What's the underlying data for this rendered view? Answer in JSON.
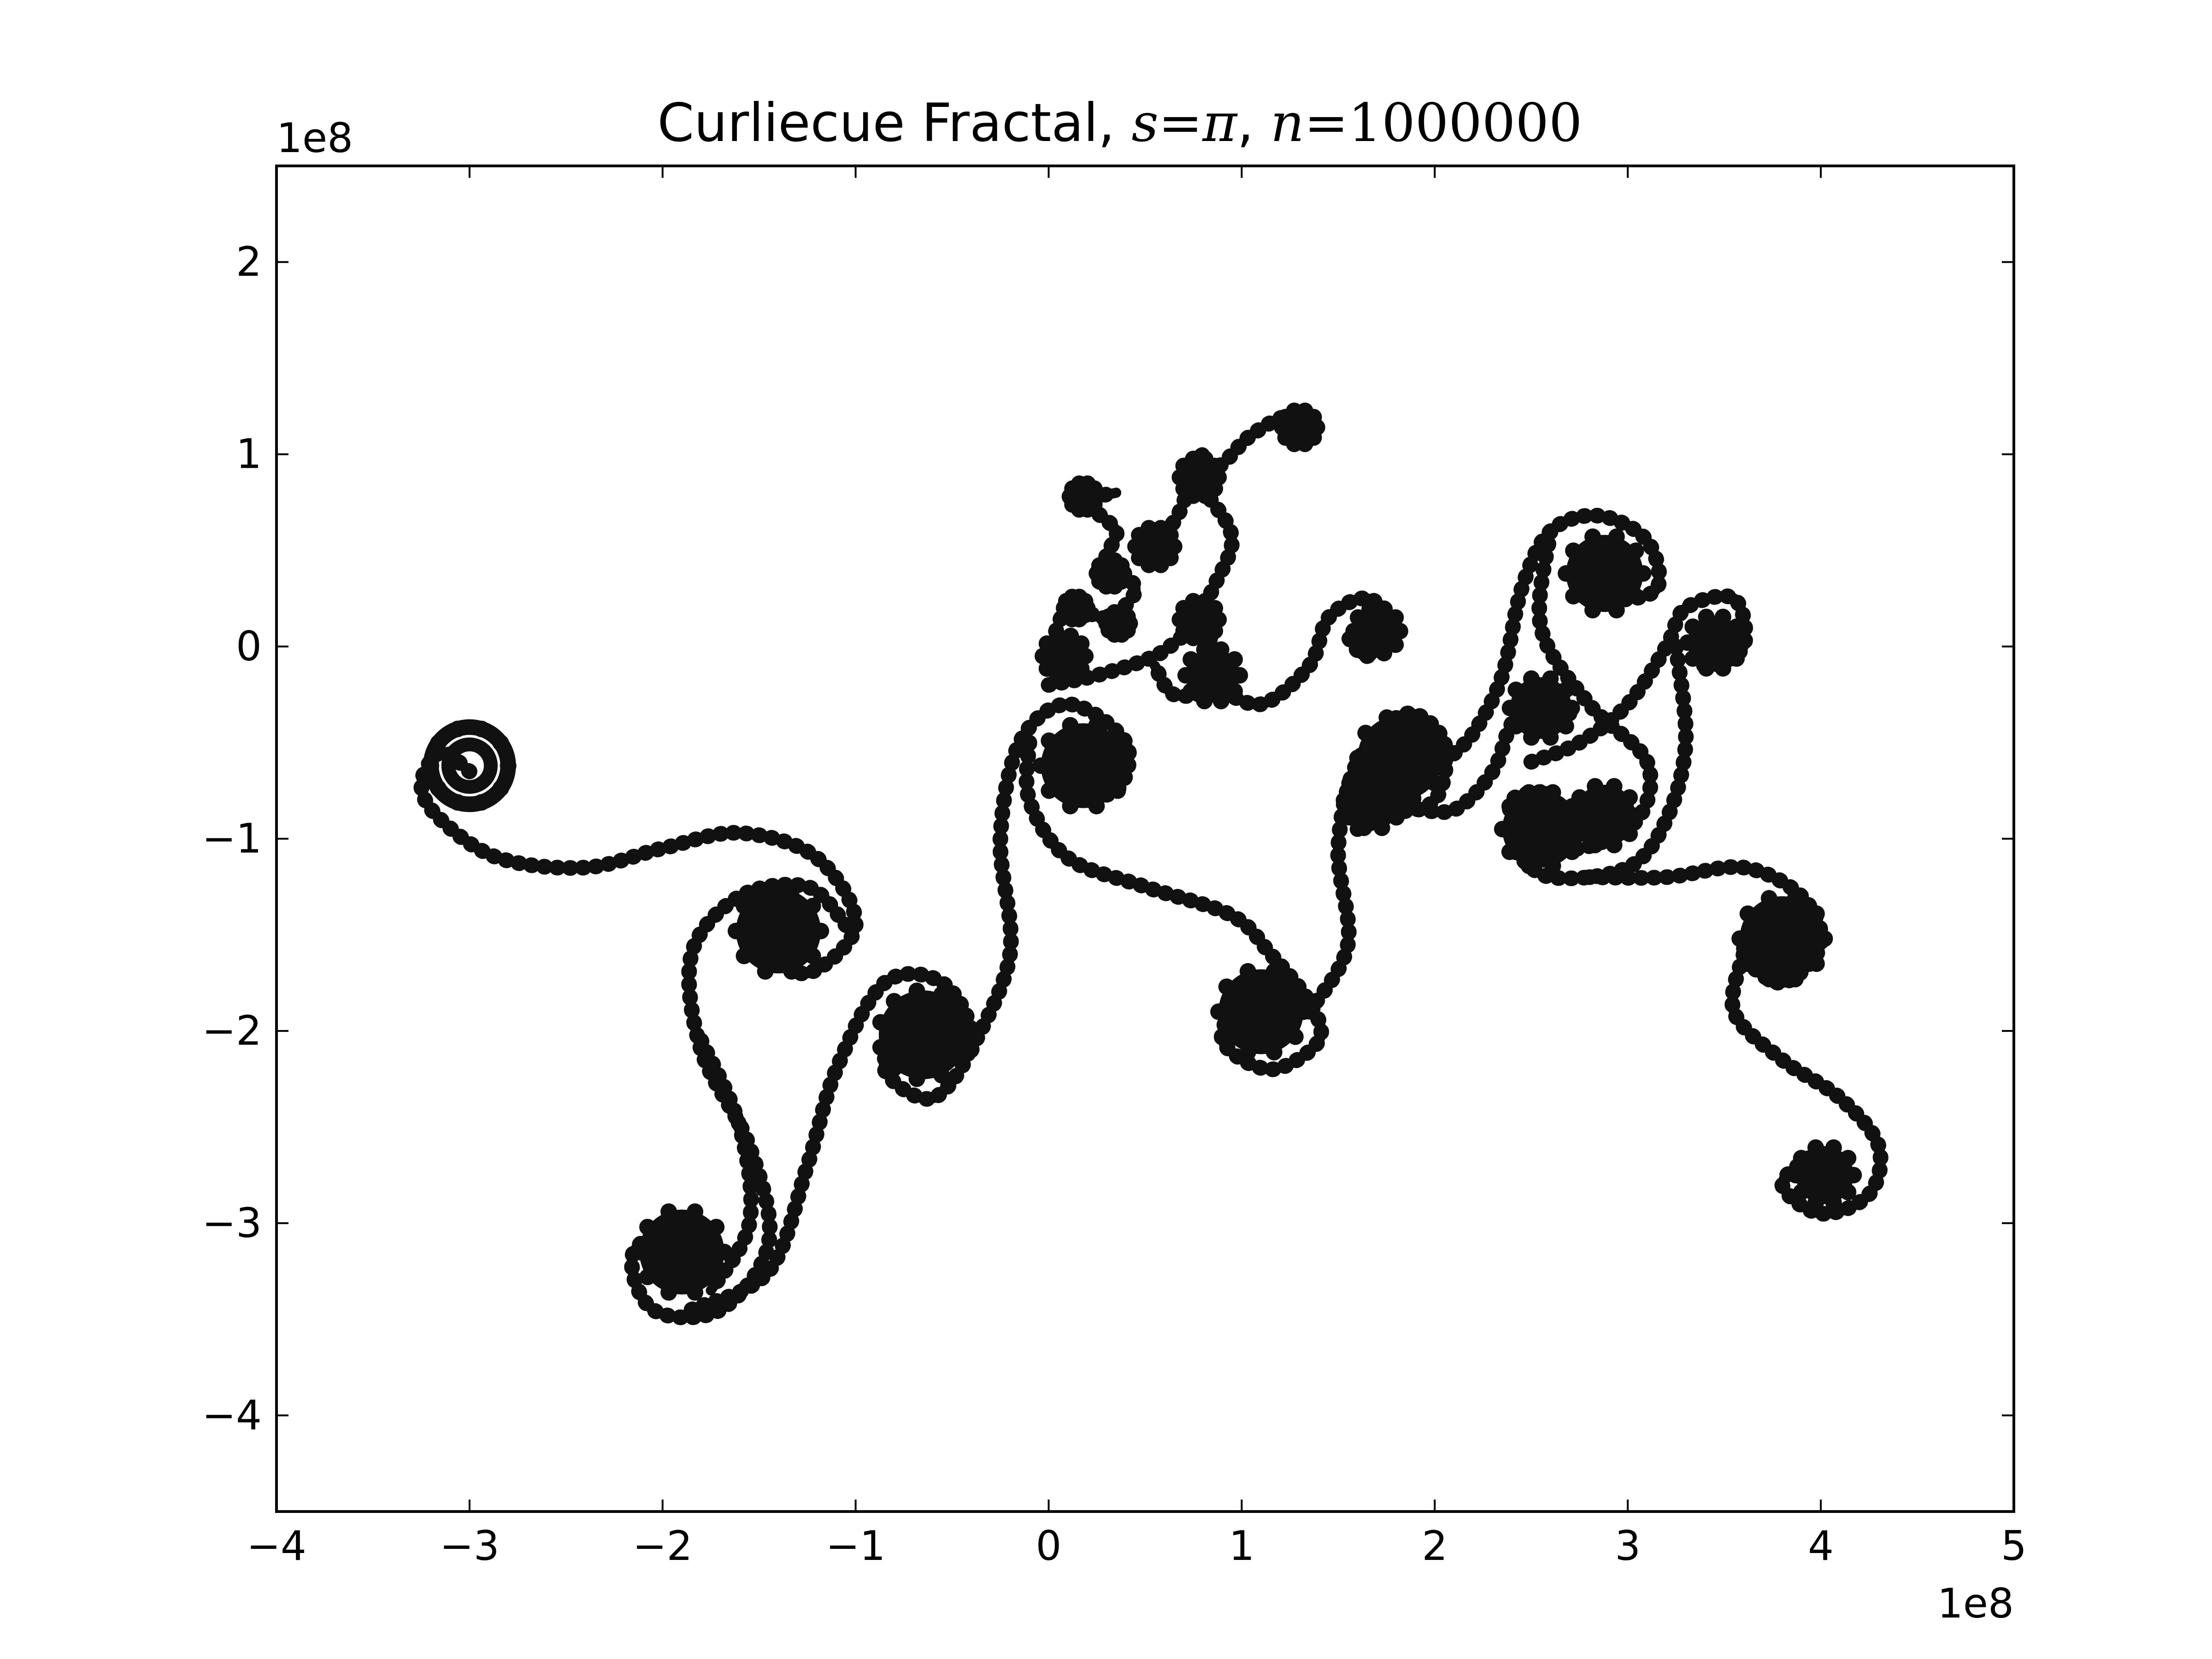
{
  "chart_data": {
    "type": "scatter",
    "title": {
      "prefix": "Curliecue Fractal, ",
      "s_var": "s",
      "s_eq": "=",
      "s_val": "π",
      "sep": ", ",
      "n_var": "n",
      "n_eq": "=",
      "n_val": "1000000"
    },
    "xlabel": "",
    "ylabel": "",
    "x_offset_label": "1e8",
    "y_offset_label": "1e8",
    "xlim": [
      -4,
      5
    ],
    "ylim": [
      -4.5,
      2.5
    ],
    "xticks": [
      -4,
      -3,
      -2,
      -1,
      0,
      1,
      2,
      3,
      4,
      5
    ],
    "xtick_labels": [
      "−4",
      "−3",
      "−2",
      "−1",
      "0",
      "1",
      "2",
      "3",
      "4",
      "5"
    ],
    "yticks": [
      -4,
      -3,
      -2,
      -1,
      0,
      1,
      2
    ],
    "ytick_labels": [
      "−4",
      "−3",
      "−2",
      "−1",
      "0",
      "1",
      "2"
    ],
    "grid": false,
    "marker_color": "#111111",
    "curves": [
      {
        "name": "",
        "points": [
          [
            -3.0,
            -0.65
          ],
          [
            -3.15,
            -0.55
          ],
          [
            -3.25,
            -0.72
          ],
          [
            -3.15,
            -0.9
          ],
          [
            -2.85,
            -1.1
          ],
          [
            -2.4,
            -1.15
          ],
          [
            -2.0,
            -1.05
          ],
          [
            -1.6,
            -0.97
          ],
          [
            -1.2,
            -1.1
          ],
          [
            -1.0,
            -1.45
          ],
          [
            -1.25,
            -1.7
          ],
          [
            -1.45,
            -1.55
          ],
          [
            -1.35,
            -1.4
          ]
        ]
      },
      {
        "name": "",
        "points": [
          [
            -1.05,
            -1.45
          ],
          [
            -1.25,
            -1.25
          ],
          [
            -1.6,
            -1.3
          ],
          [
            -1.85,
            -1.6
          ],
          [
            -1.8,
            -2.1
          ],
          [
            -1.55,
            -2.6
          ],
          [
            -1.45,
            -3.1
          ],
          [
            -1.7,
            -3.45
          ],
          [
            -2.05,
            -3.45
          ],
          [
            -2.15,
            -3.15
          ],
          [
            -1.85,
            -3.0
          ],
          [
            -1.75,
            -3.2
          ]
        ]
      },
      {
        "name": "",
        "points": [
          [
            -1.8,
            -2.05
          ],
          [
            -1.6,
            -2.5
          ],
          [
            -1.55,
            -3.0
          ],
          [
            -1.75,
            -3.35
          ]
        ]
      },
      {
        "name": "",
        "points": [
          [
            -1.85,
            -3.45
          ],
          [
            -1.45,
            -3.25
          ],
          [
            -1.25,
            -2.7
          ],
          [
            -1.1,
            -2.2
          ],
          [
            -0.85,
            -1.75
          ],
          [
            -0.55,
            -1.75
          ],
          [
            -0.4,
            -2.05
          ],
          [
            -0.6,
            -2.35
          ],
          [
            -0.85,
            -2.2
          ],
          [
            -0.75,
            -1.95
          ]
        ]
      },
      {
        "name": "",
        "points": [
          [
            -0.4,
            -2.1
          ],
          [
            -0.2,
            -1.6
          ],
          [
            -0.25,
            -1.0
          ],
          [
            -0.15,
            -0.5
          ],
          [
            0.1,
            -0.3
          ],
          [
            0.4,
            -0.5
          ],
          [
            0.35,
            -0.75
          ],
          [
            0.1,
            -0.75
          ],
          [
            0.05,
            -0.55
          ]
        ]
      },
      {
        "name": "",
        "points": [
          [
            -0.1,
            -0.5
          ],
          [
            -0.1,
            -0.8
          ],
          [
            0.1,
            -1.1
          ],
          [
            0.5,
            -1.25
          ],
          [
            0.95,
            -1.4
          ],
          [
            1.15,
            -1.6
          ],
          [
            1.35,
            -1.85
          ],
          [
            1.4,
            -2.05
          ],
          [
            1.15,
            -2.2
          ],
          [
            0.9,
            -2.05
          ],
          [
            1.0,
            -1.8
          ]
        ]
      },
      {
        "name": "",
        "points": [
          [
            1.35,
            -1.9
          ],
          [
            1.55,
            -1.55
          ],
          [
            1.5,
            -1.05
          ],
          [
            1.6,
            -0.6
          ],
          [
            1.85,
            -0.35
          ],
          [
            2.05,
            -0.5
          ],
          [
            2.0,
            -0.8
          ],
          [
            1.75,
            -0.85
          ],
          [
            1.65,
            -0.7
          ]
        ]
      },
      {
        "name": "",
        "points": [
          [
            0.0,
            -0.2
          ],
          [
            0.25,
            -0.15
          ],
          [
            0.55,
            -0.05
          ],
          [
            0.8,
            0.1
          ],
          [
            0.85,
            -0.2
          ],
          [
            0.65,
            -0.25
          ],
          [
            0.55,
            -0.1
          ]
        ]
      },
      {
        "name": "",
        "points": [
          [
            0.85,
            -0.2
          ],
          [
            1.1,
            -0.3
          ],
          [
            1.35,
            -0.1
          ],
          [
            1.45,
            0.15
          ],
          [
            1.65,
            0.25
          ],
          [
            1.8,
            0.1
          ],
          [
            1.65,
            -0.05
          ],
          [
            1.55,
            0.05
          ]
        ]
      },
      {
        "name": "",
        "points": [
          [
            0.0,
            -0.05
          ],
          [
            0.1,
            0.2
          ],
          [
            0.3,
            0.15
          ],
          [
            0.45,
            0.3
          ],
          [
            0.3,
            0.45
          ],
          [
            0.35,
            0.6
          ],
          [
            0.2,
            0.75
          ],
          [
            0.35,
            0.8
          ]
        ]
      },
      {
        "name": "",
        "points": [
          [
            0.5,
            0.5
          ],
          [
            0.65,
            0.65
          ],
          [
            0.75,
            0.85
          ],
          [
            0.9,
            0.95
          ],
          [
            1.05,
            1.1
          ],
          [
            1.25,
            1.2
          ],
          [
            1.35,
            1.1
          ]
        ]
      },
      {
        "name": "",
        "points": [
          [
            0.75,
            0.1
          ],
          [
            0.85,
            0.3
          ],
          [
            0.95,
            0.55
          ],
          [
            0.85,
            0.75
          ],
          [
            0.7,
            0.9
          ],
          [
            0.8,
            1.0
          ]
        ]
      },
      {
        "name": "",
        "points": [
          [
            2.05,
            -0.6
          ],
          [
            2.2,
            -0.45
          ],
          [
            2.35,
            -0.15
          ],
          [
            2.45,
            0.3
          ],
          [
            2.6,
            0.6
          ],
          [
            2.85,
            0.68
          ],
          [
            3.1,
            0.55
          ],
          [
            3.15,
            0.3
          ],
          [
            2.9,
            0.25
          ],
          [
            2.85,
            0.4
          ]
        ]
      },
      {
        "name": "",
        "points": [
          [
            2.6,
            0.6
          ],
          [
            2.55,
            0.1
          ],
          [
            2.8,
            -0.3
          ],
          [
            3.1,
            -0.6
          ],
          [
            3.05,
            -0.9
          ],
          [
            2.75,
            -1.05
          ],
          [
            2.45,
            -1.0
          ],
          [
            2.4,
            -0.8
          ],
          [
            2.6,
            -0.75
          ]
        ]
      },
      {
        "name": "",
        "points": [
          [
            2.5,
            -0.6
          ],
          [
            2.75,
            -0.5
          ],
          [
            3.0,
            -0.3
          ],
          [
            3.2,
            0.0
          ],
          [
            3.3,
            0.2
          ],
          [
            3.55,
            0.25
          ],
          [
            3.6,
            0.0
          ],
          [
            3.4,
            -0.1
          ],
          [
            3.35,
            0.05
          ]
        ]
      },
      {
        "name": "",
        "points": [
          [
            3.25,
            0.0
          ],
          [
            3.3,
            -0.5
          ],
          [
            3.2,
            -0.9
          ],
          [
            3.0,
            -1.15
          ],
          [
            2.6,
            -1.2
          ],
          [
            2.4,
            -1.05
          ]
        ]
      },
      {
        "name": "",
        "points": [
          [
            2.8,
            -1.2
          ],
          [
            3.2,
            -1.2
          ],
          [
            3.6,
            -1.15
          ],
          [
            3.9,
            -1.3
          ],
          [
            4.0,
            -1.55
          ],
          [
            3.8,
            -1.75
          ],
          [
            3.6,
            -1.6
          ],
          [
            3.7,
            -1.45
          ]
        ]
      },
      {
        "name": "",
        "points": [
          [
            3.6,
            -1.6
          ],
          [
            3.55,
            -1.9
          ],
          [
            3.8,
            -2.15
          ],
          [
            4.1,
            -2.35
          ],
          [
            4.3,
            -2.6
          ],
          [
            4.25,
            -2.85
          ],
          [
            4.0,
            -2.95
          ],
          [
            3.8,
            -2.8
          ],
          [
            3.95,
            -2.65
          ]
        ]
      },
      {
        "name": "",
        "points": [
          [
            1.6,
            -0.95
          ],
          [
            1.85,
            -0.85
          ],
          [
            2.1,
            -0.85
          ],
          [
            2.3,
            -0.65
          ],
          [
            2.4,
            -0.4
          ],
          [
            2.55,
            -0.25
          ],
          [
            2.7,
            -0.35
          ]
        ]
      }
    ],
    "clusters": [
      {
        "x": -3.0,
        "y": -0.62,
        "r": 0.2,
        "hollow": true
      },
      {
        "x": -1.4,
        "y": -1.48,
        "r": 0.22,
        "hollow": false
      },
      {
        "x": -1.9,
        "y": -3.15,
        "r": 0.22,
        "hollow": false
      },
      {
        "x": -0.65,
        "y": -2.02,
        "r": 0.23,
        "hollow": false
      },
      {
        "x": 0.18,
        "y": -0.62,
        "r": 0.22,
        "hollow": false
      },
      {
        "x": 1.1,
        "y": -1.9,
        "r": 0.22,
        "hollow": false
      },
      {
        "x": 1.82,
        "y": -0.58,
        "r": 0.22,
        "hollow": false
      },
      {
        "x": 1.68,
        "y": -0.8,
        "r": 0.15,
        "hollow": false
      },
      {
        "x": 2.55,
        "y": -0.32,
        "r": 0.16,
        "hollow": false
      },
      {
        "x": 2.55,
        "y": -0.95,
        "r": 0.2,
        "hollow": false
      },
      {
        "x": 2.88,
        "y": -0.88,
        "r": 0.16,
        "hollow": false
      },
      {
        "x": 2.88,
        "y": 0.38,
        "r": 0.2,
        "hollow": false
      },
      {
        "x": 3.45,
        "y": 0.02,
        "r": 0.14,
        "hollow": false
      },
      {
        "x": 3.8,
        "y": -1.52,
        "r": 0.22,
        "hollow": false
      },
      {
        "x": 4.02,
        "y": -2.75,
        "r": 0.15,
        "hollow": false
      },
      {
        "x": 1.7,
        "y": 0.08,
        "r": 0.12,
        "hollow": false
      },
      {
        "x": 0.85,
        "y": -0.15,
        "r": 0.14,
        "hollow": false
      },
      {
        "x": 0.08,
        "y": -0.05,
        "r": 0.11,
        "hollow": false
      },
      {
        "x": 0.78,
        "y": 0.14,
        "r": 0.1,
        "hollow": false
      },
      {
        "x": 0.55,
        "y": 0.52,
        "r": 0.1,
        "hollow": false
      },
      {
        "x": 0.78,
        "y": 0.88,
        "r": 0.1,
        "hollow": false
      },
      {
        "x": 0.18,
        "y": 0.78,
        "r": 0.07,
        "hollow": false
      },
      {
        "x": 0.32,
        "y": 0.38,
        "r": 0.07,
        "hollow": false
      },
      {
        "x": 0.14,
        "y": 0.2,
        "r": 0.06,
        "hollow": false
      },
      {
        "x": 0.36,
        "y": 0.12,
        "r": 0.06,
        "hollow": false
      },
      {
        "x": 1.3,
        "y": 1.14,
        "r": 0.09,
        "hollow": false
      }
    ]
  }
}
